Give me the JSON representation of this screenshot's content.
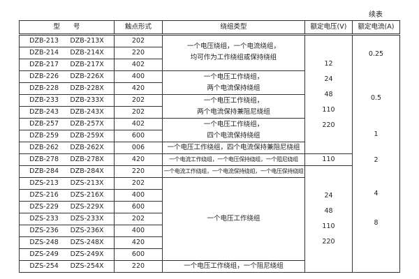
{
  "caption": "续表",
  "headers": [
    "型　　号",
    "触点形式",
    "绕组类型",
    "额定电压(V)",
    "额定电流(A)"
  ],
  "rows": [
    [
      "DZB-213",
      "DZB-213X",
      "202"
    ],
    [
      "DZB-214",
      "DZB-214X",
      "220"
    ],
    [
      "DZB-217",
      "DZB-217X",
      "402"
    ],
    [
      "DZB-226",
      "DZB-226X",
      "400"
    ],
    [
      "DZB-228",
      "DZB-228X",
      "420"
    ],
    [
      "DZB-233",
      "DZB-233X",
      "202"
    ],
    [
      "DZB-243",
      "DZB-243X",
      "202"
    ],
    [
      "DZB-257",
      "DZB-257X",
      "402"
    ],
    [
      "DZB-259",
      "DZB-259X",
      "600"
    ],
    [
      "DZB-262",
      "DZB-262X",
      "006"
    ],
    [
      "DZB-278",
      "DZB-278X",
      "420"
    ],
    [
      "DZB-284",
      "DZB-284X",
      "220"
    ],
    [
      "DZS-213",
      "DZS-213X",
      "202"
    ],
    [
      "DZS-216",
      "DZS-216X",
      "400"
    ],
    [
      "DZS-229",
      "DZS-229X",
      "600"
    ],
    [
      "DZS-233",
      "DZS-233X",
      "202"
    ],
    [
      "DZS-236",
      "DZS-236X",
      "400"
    ],
    [
      "DZS-248",
      "DZS-248X",
      "420"
    ],
    [
      "DZS-249",
      "DZS-249X",
      "600"
    ],
    [
      "DZS-254",
      "DZS-254X",
      "220"
    ]
  ],
  "windings": [
    "一个电压绕组，一个电流绕组，\n均可作为工作绕组或保持绕组",
    "一个电压工作绕组，\n两个电流保持绕组",
    "一个电压工作绕组，\n两个电流保持兼阻尼绕组",
    "一个电压工作绕组，\n四个电流保持绕组",
    "一个电压工作绕组，四个电流保持兼阻尼绕组",
    "一个电流工作绕组，一个电压保持绕组，一个阻尼绕组",
    "一个电流工作绕组，一个电流保持绕组，一个电压保持绕组",
    "一个电压工作绕组",
    "一个电压工作绕组，一个阻尼绕组"
  ],
  "voltages": [
    "12\n24\n48\n110\n220",
    "110",
    "24\n48\n110\n220"
  ],
  "currents": [
    "0.25",
    "0.5",
    "1",
    "2",
    "4",
    "8"
  ]
}
